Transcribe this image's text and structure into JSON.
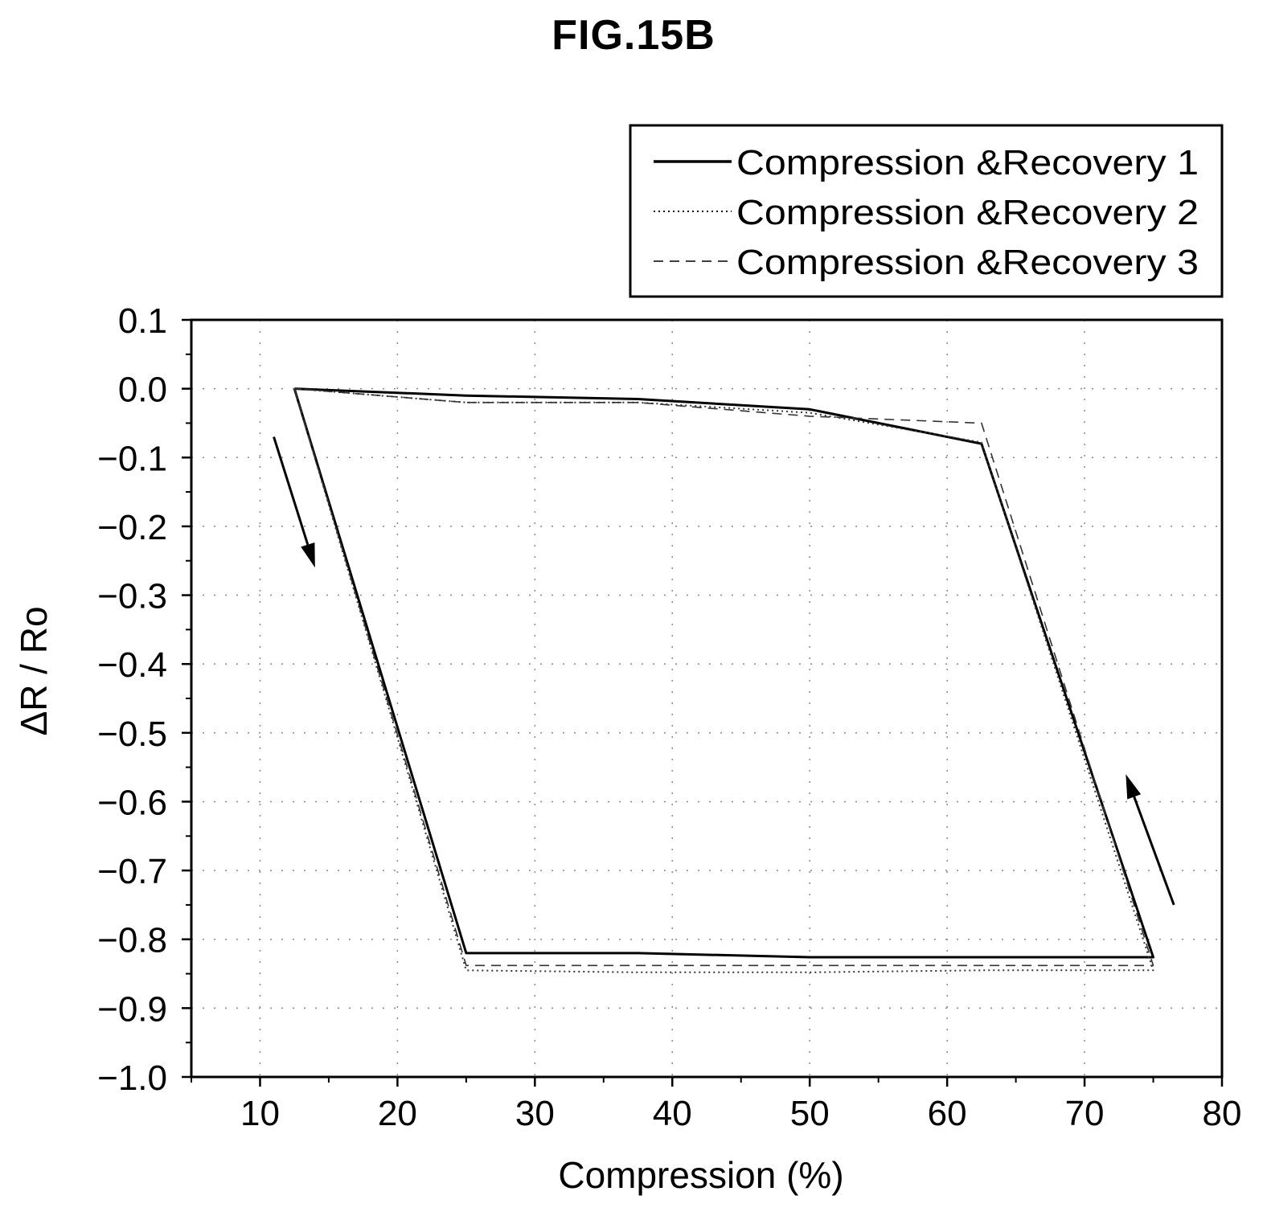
{
  "figure_label": "FIG.15B",
  "chart_data": {
    "type": "line",
    "xlabel": "Compression (%)",
    "ylabel": "ΔR / Ro",
    "xlim": [
      5,
      80
    ],
    "ylim": [
      -1.0,
      0.1
    ],
    "x_ticks": [
      10,
      20,
      30,
      40,
      50,
      60,
      70,
      80
    ],
    "y_ticks": [
      0.1,
      0.0,
      -0.1,
      -0.2,
      -0.3,
      -0.4,
      -0.5,
      -0.6,
      -0.7,
      -0.8,
      -0.9,
      -1.0
    ],
    "y_tick_labels": [
      "0.1",
      "0.0",
      "−0.1",
      "−0.2",
      "−0.3",
      "−0.4",
      "−0.5",
      "−0.6",
      "−0.7",
      "−0.8",
      "−0.9",
      "−1.0"
    ],
    "grid": true,
    "legend_position": "top-right",
    "series": [
      {
        "name": "Compression &Recovery 1",
        "style": "solid",
        "x": [
          12.5,
          25,
          37.5,
          50,
          62.5,
          75,
          62.5,
          50,
          37.5,
          25,
          12.5
        ],
        "y": [
          0.0,
          -0.82,
          -0.82,
          -0.826,
          -0.826,
          -0.826,
          -0.08,
          -0.03,
          -0.015,
          -0.01,
          0.0
        ]
      },
      {
        "name": "Compression &Recovery 2",
        "style": "dotted",
        "x": [
          12.5,
          25,
          37.5,
          50,
          62.5,
          75,
          62.5,
          50,
          37.5,
          25,
          12.5
        ],
        "y": [
          0.0,
          -0.845,
          -0.848,
          -0.848,
          -0.845,
          -0.845,
          -0.078,
          -0.035,
          -0.02,
          -0.02,
          0.0
        ]
      },
      {
        "name": "Compression &Recovery 3",
        "style": "dashed",
        "x": [
          12.5,
          25,
          37.5,
          50,
          62.5,
          75,
          62.5,
          50,
          37.5,
          25,
          12.5
        ],
        "y": [
          0.0,
          -0.838,
          -0.838,
          -0.838,
          -0.838,
          -0.838,
          -0.05,
          -0.04,
          -0.02,
          -0.02,
          0.0
        ]
      }
    ],
    "arrows": [
      {
        "from": [
          11,
          -0.07
        ],
        "to": [
          14,
          -0.26
        ]
      },
      {
        "from": [
          76.5,
          -0.75
        ],
        "to": [
          73,
          -0.56
        ]
      }
    ]
  }
}
